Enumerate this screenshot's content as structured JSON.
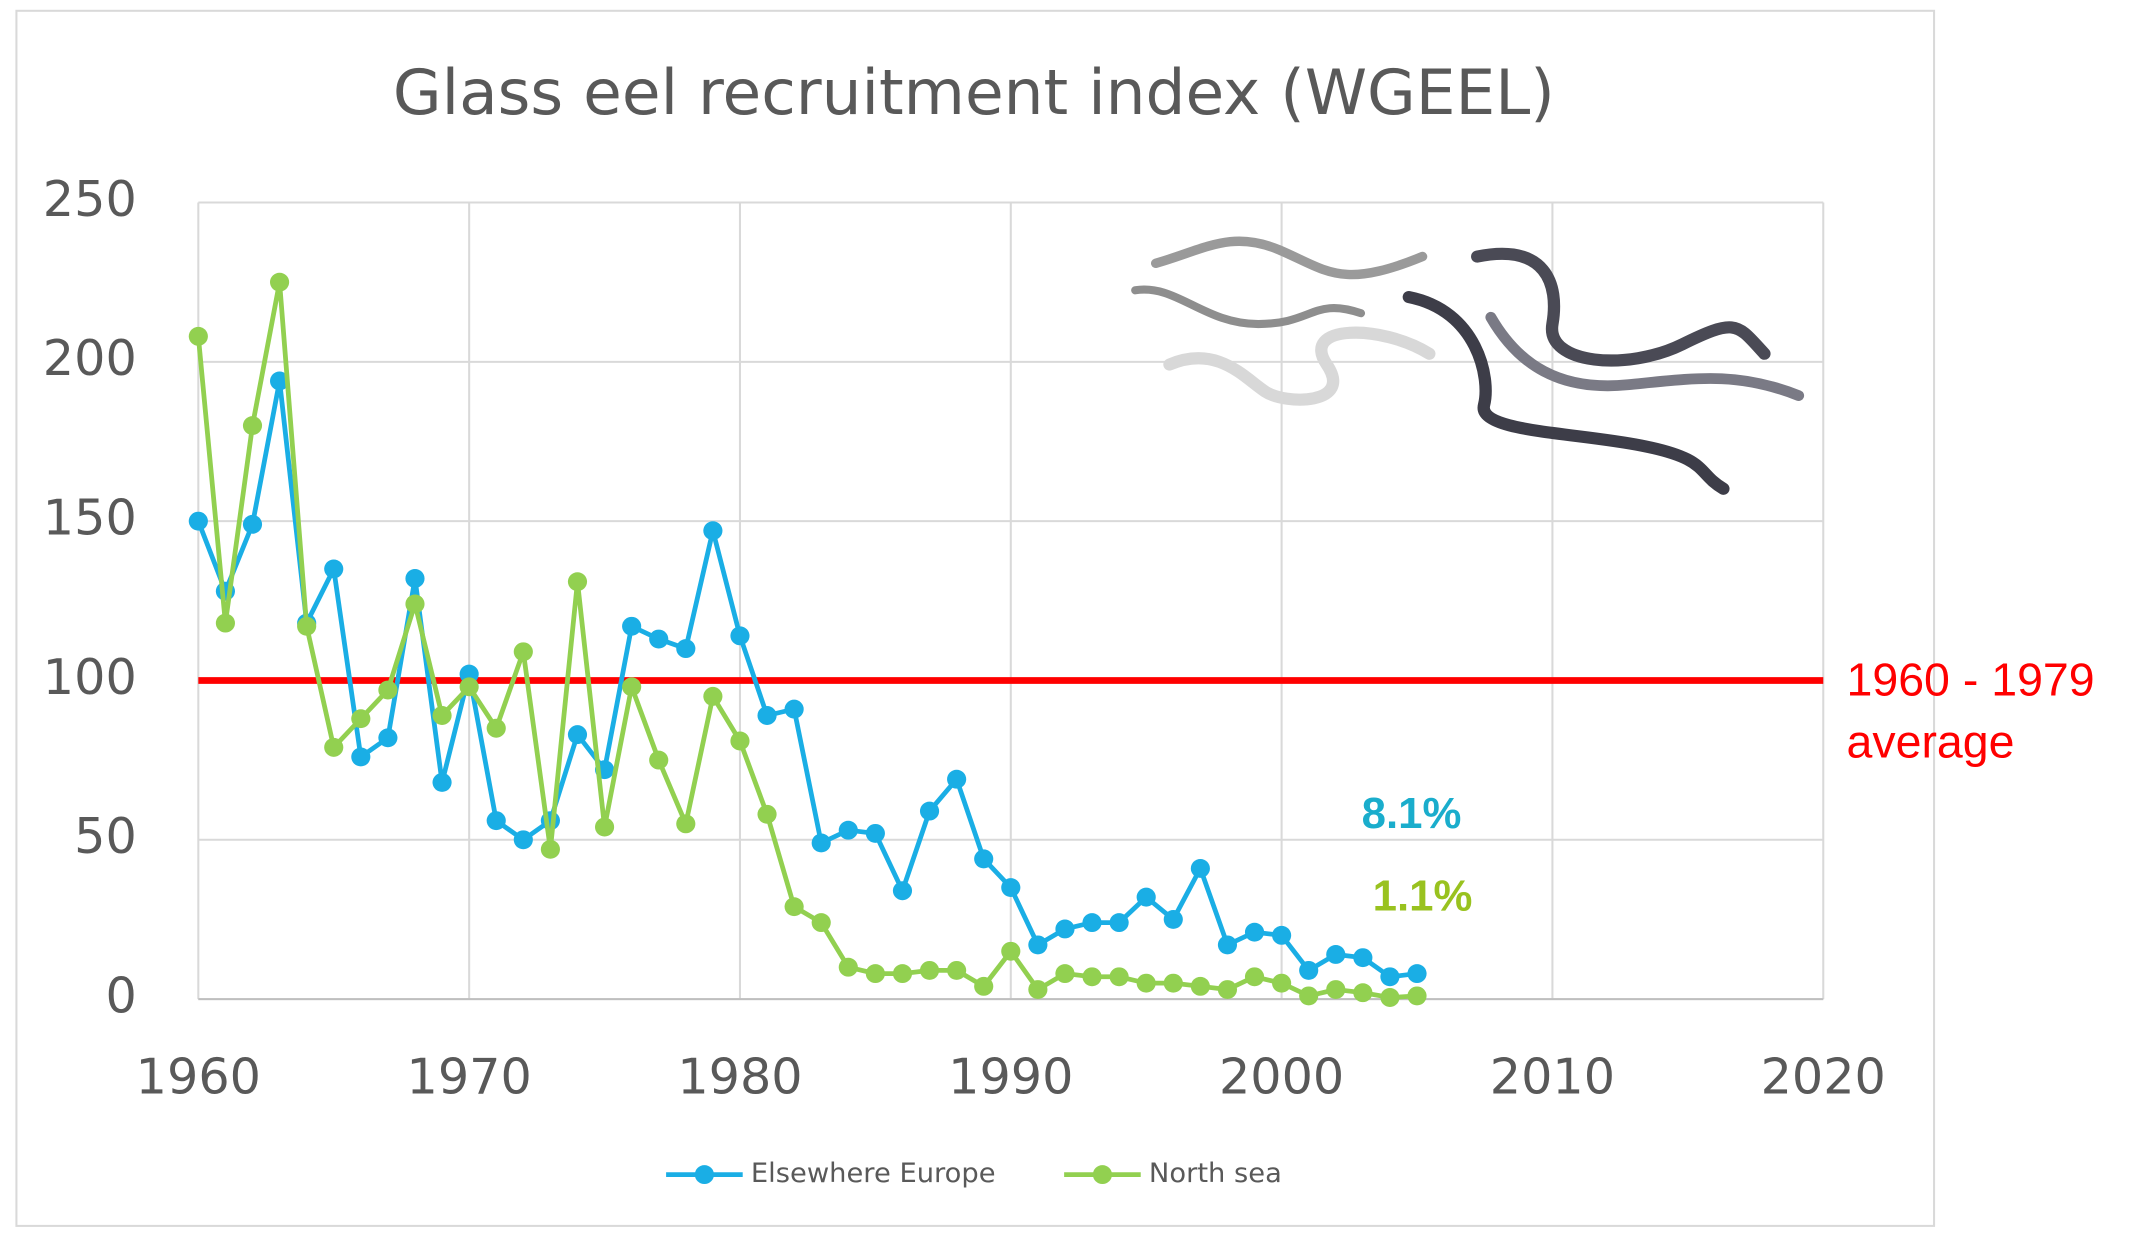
{
  "chart_data": {
    "type": "line",
    "title": "Glass eel recruitment index (WGEEL)",
    "x": [
      1960,
      1961,
      1962,
      1963,
      1964,
      1965,
      1966,
      1967,
      1968,
      1969,
      1970,
      1971,
      1972,
      1973,
      1974,
      1975,
      1976,
      1977,
      1978,
      1979,
      1980,
      1981,
      1982,
      1983,
      1984,
      1985,
      1986,
      1987,
      1988,
      1989,
      1990,
      1991,
      1992,
      1993,
      1994,
      1995,
      1996,
      1997,
      1998,
      1999,
      2000,
      2001,
      2002,
      2003,
      2004,
      2005
    ],
    "series": [
      {
        "name": "Elsewhere Europe",
        "color": "#1aaee5",
        "values": [
          150,
          128,
          149,
          194,
          118,
          135,
          76,
          82,
          132,
          68,
          102,
          56,
          50,
          56,
          83,
          72,
          117,
          113,
          110,
          147,
          114,
          89,
          91,
          49,
          53,
          52,
          34,
          59,
          69,
          44,
          35,
          17,
          22,
          24,
          24,
          32,
          25,
          41,
          17,
          21,
          20,
          9,
          14,
          13,
          7,
          8
        ]
      },
      {
        "name": "North sea",
        "color": "#92d050",
        "values": [
          208,
          118,
          180,
          225,
          117,
          79,
          88,
          97,
          124,
          89,
          98,
          85,
          109,
          47,
          131,
          54,
          98,
          75,
          55,
          95,
          81,
          58,
          29,
          24,
          10,
          8,
          8,
          9,
          9,
          4,
          15,
          3,
          8,
          7,
          7,
          5,
          5,
          4,
          3,
          7,
          5,
          1,
          3,
          2,
          0.5,
          1
        ]
      }
    ],
    "xlim": [
      1960,
      2020
    ],
    "xticks": [
      1960,
      1970,
      1980,
      1990,
      2000,
      2010,
      2020
    ],
    "ylim": [
      0,
      250
    ],
    "yticks": [
      0,
      50,
      100,
      150,
      200,
      250
    ],
    "grid": true,
    "reference_line": {
      "value": 100,
      "color": "#ff0000",
      "label": [
        "1960 - 1979",
        "average"
      ]
    },
    "annotations": [
      {
        "text": "8.1%",
        "color": "#1aadcc"
      },
      {
        "text": "1.1%",
        "color": "#99c21f"
      }
    ],
    "legend": "bottom"
  }
}
